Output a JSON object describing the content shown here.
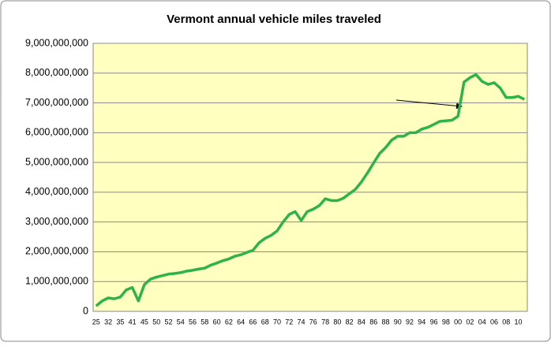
{
  "chart_data": {
    "type": "line",
    "title": "Vermont annual vehicle miles traveled",
    "categories": [
      "25",
      null,
      "32",
      null,
      "35",
      null,
      "41",
      null,
      "45",
      null,
      "50",
      null,
      "52",
      null,
      "54",
      null,
      "56",
      null,
      "58",
      null,
      "60",
      null,
      "62",
      null,
      "64",
      null,
      "66",
      null,
      "68",
      null,
      "70",
      null,
      "72",
      null,
      "74",
      null,
      "76",
      null,
      "78",
      null,
      "80",
      null,
      "82",
      null,
      "84",
      null,
      "86",
      null,
      "88",
      null,
      "90",
      null,
      "92",
      null,
      "94",
      null,
      "96",
      null,
      "98",
      null,
      "00",
      null,
      "02",
      null,
      "04",
      null,
      "06",
      null,
      "08",
      null,
      "10",
      null
    ],
    "series": [
      {
        "name": "Vermont annual vehicle miles traveled",
        "color": "#2db34a",
        "values": [
          180000000,
          350000000,
          450000000,
          420000000,
          480000000,
          720000000,
          800000000,
          350000000,
          900000000,
          1080000000,
          1150000000,
          1200000000,
          1250000000,
          1270000000,
          1300000000,
          1350000000,
          1380000000,
          1420000000,
          1450000000,
          1550000000,
          1620000000,
          1700000000,
          1760000000,
          1850000000,
          1900000000,
          1980000000,
          2050000000,
          2300000000,
          2450000000,
          2550000000,
          2700000000,
          3000000000,
          3250000000,
          3350000000,
          3050000000,
          3350000000,
          3430000000,
          3550000000,
          3780000000,
          3720000000,
          3720000000,
          3800000000,
          3950000000,
          4100000000,
          4350000000,
          4650000000,
          4980000000,
          5300000000,
          5500000000,
          5750000000,
          5880000000,
          5880000000,
          6000000000,
          6000000000,
          6120000000,
          6180000000,
          6280000000,
          6380000000,
          6400000000,
          6420000000,
          6550000000,
          7700000000,
          7850000000,
          7950000000,
          7720000000,
          7620000000,
          7680000000,
          7500000000,
          7180000000,
          7180000000,
          7220000000,
          7120000000
        ]
      }
    ],
    "ylim": [
      0,
      9000000000
    ],
    "yticks": [
      0,
      {
        "value": 1000000000,
        "label": "1,000,000,000"
      },
      {
        "value": 2000000000,
        "label": "2,000,000,000"
      },
      {
        "value": 3000000000,
        "label": "3,000,000,000"
      },
      {
        "value": 4000000000,
        "label": "4,000,000,000"
      },
      {
        "value": 5000000000,
        "label": "5,000,000,000"
      },
      {
        "value": 6000000000,
        "label": "6,000,000,000"
      },
      {
        "value": 7000000000,
        "label": "7,000,000,000"
      },
      {
        "value": 8000000000,
        "label": "8,000,000,000"
      },
      {
        "value": 9000000000,
        "label": "9,000,000,000"
      }
    ],
    "grid": true
  }
}
